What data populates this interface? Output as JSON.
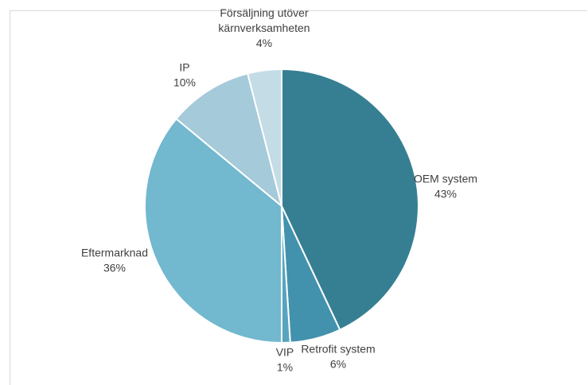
{
  "chart_data": {
    "type": "pie",
    "title": "",
    "start_angle_deg": 0,
    "direction": "clockwise",
    "slices": [
      {
        "label": "OEM system",
        "value": 43,
        "value_label": "43%",
        "color": "#367f93"
      },
      {
        "label": "Retrofit system",
        "value": 6,
        "value_label": "6%",
        "color": "#4292ad"
      },
      {
        "label": "VIP",
        "value": 1,
        "value_label": "1%",
        "color": "#58a4bf"
      },
      {
        "label": "Eftermarknad",
        "value": 36,
        "value_label": "36%",
        "color": "#72b8cf"
      },
      {
        "label": "IP",
        "value": 10,
        "value_label": "10%",
        "color": "#a5cad9"
      },
      {
        "label": "Försäljning utöver kärnverksamheten",
        "value": 4,
        "value_label": "4%",
        "color": "#c4dce5"
      }
    ],
    "legend": "none"
  }
}
